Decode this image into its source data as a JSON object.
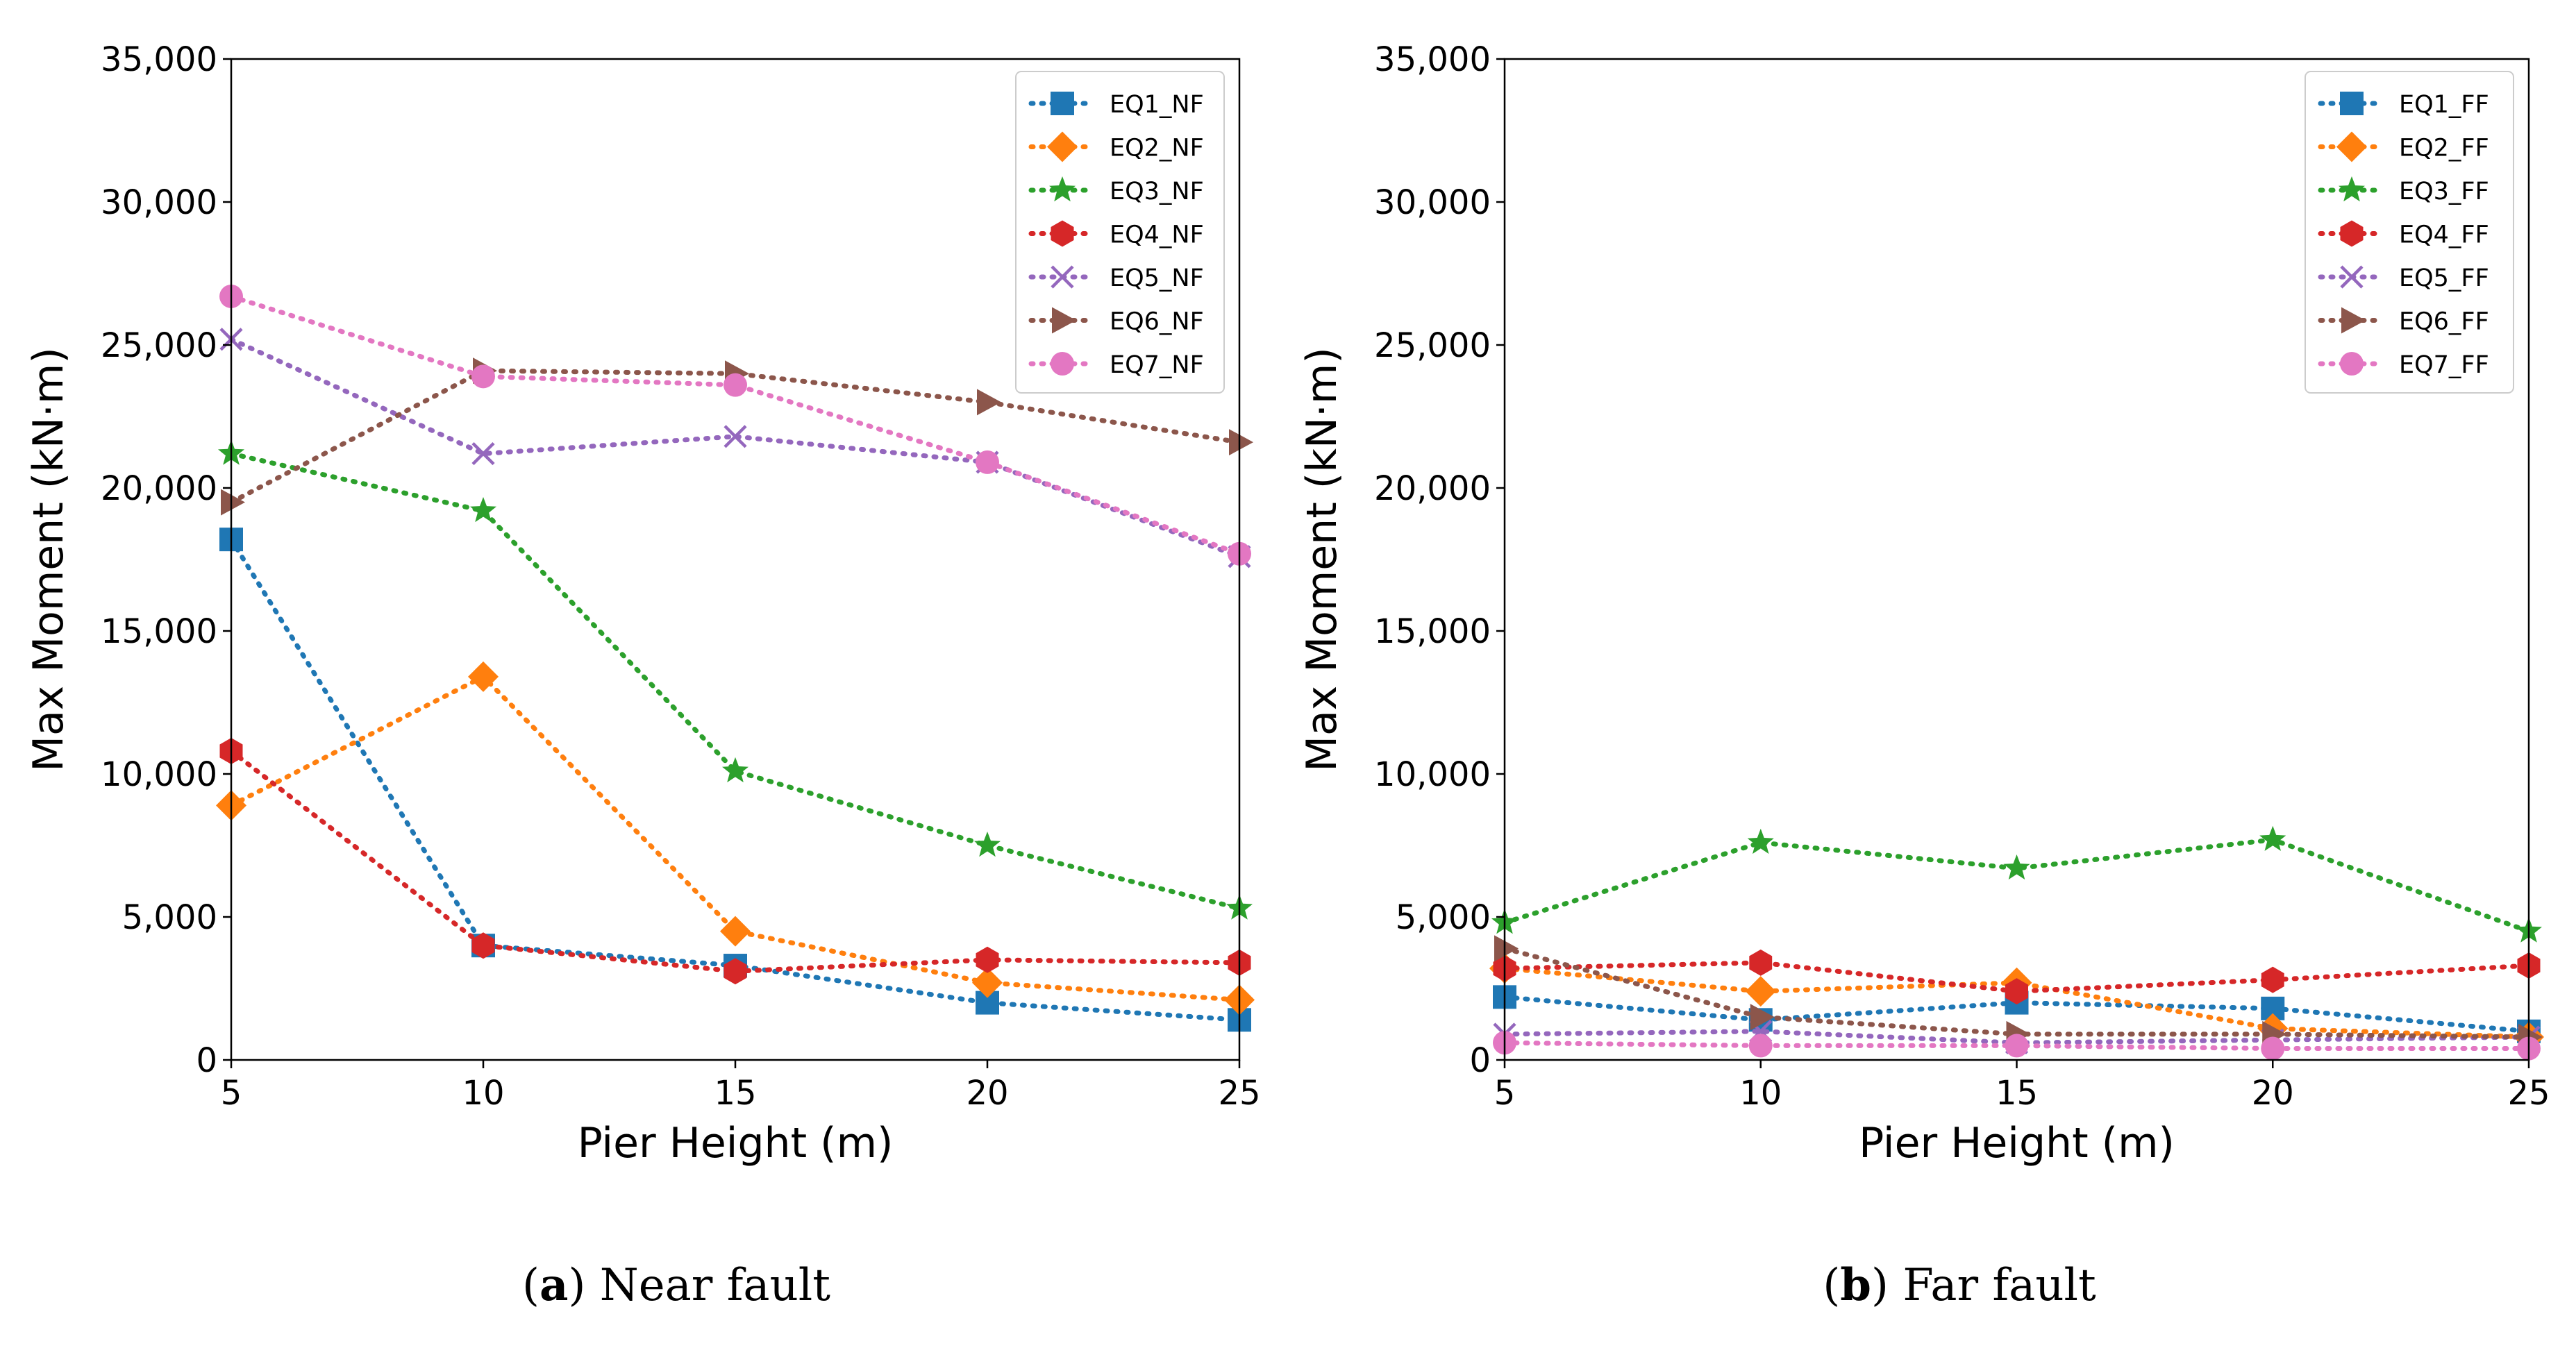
{
  "chart_data": [
    {
      "type": "line",
      "caption": {
        "letter": "a",
        "text": "Near fault"
      },
      "xlabel": "Pier Height (m)",
      "ylabel": "Max Moment (kN·m)",
      "xlim": [
        5,
        25
      ],
      "ylim": [
        0,
        35000
      ],
      "xticks": [
        "5",
        "10",
        "15",
        "20",
        "25"
      ],
      "yticks": [
        "0",
        "5,000",
        "10,000",
        "15,000",
        "20,000",
        "25,000",
        "30,000",
        "35,000"
      ],
      "grid": false,
      "legend_position": "top-right",
      "x": [
        5,
        10,
        15,
        20,
        25
      ],
      "series": [
        {
          "name": "EQ1_NF",
          "color": "#1f77b4",
          "marker": "square",
          "values": [
            18200,
            4000,
            3300,
            2000,
            1400
          ]
        },
        {
          "name": "EQ2_NF",
          "color": "#ff7f0e",
          "marker": "diamond",
          "values": [
            8900,
            13400,
            4500,
            2700,
            2100
          ]
        },
        {
          "name": "EQ3_NF",
          "color": "#2ca02c",
          "marker": "star",
          "values": [
            21200,
            19200,
            10100,
            7500,
            5300
          ]
        },
        {
          "name": "EQ4_NF",
          "color": "#d62728",
          "marker": "hexagon",
          "values": [
            10800,
            4000,
            3100,
            3500,
            3400
          ]
        },
        {
          "name": "EQ5_NF",
          "color": "#9467bd",
          "marker": "x",
          "values": [
            25200,
            21200,
            21800,
            20900,
            17600
          ]
        },
        {
          "name": "EQ6_NF",
          "color": "#8c564b",
          "marker": "triangle-right",
          "values": [
            19500,
            24100,
            24000,
            23000,
            21600
          ]
        },
        {
          "name": "EQ7_NF",
          "color": "#e377c2",
          "marker": "circle",
          "values": [
            26700,
            23900,
            23600,
            20900,
            17700
          ]
        }
      ]
    },
    {
      "type": "line",
      "caption": {
        "letter": "b",
        "text": "Far fault"
      },
      "xlabel": "Pier Height (m)",
      "ylabel": "Max Moment (kN·m)",
      "xlim": [
        5,
        25
      ],
      "ylim": [
        0,
        35000
      ],
      "xticks": [
        "5",
        "10",
        "15",
        "20",
        "25"
      ],
      "yticks": [
        "0",
        "5,000",
        "10,000",
        "15,000",
        "20,000",
        "25,000",
        "30,000",
        "35,000"
      ],
      "grid": false,
      "legend_position": "top-right",
      "x": [
        5,
        10,
        15,
        20,
        25
      ],
      "series": [
        {
          "name": "EQ1_FF",
          "color": "#1f77b4",
          "marker": "square",
          "values": [
            2200,
            1400,
            2000,
            1800,
            1000
          ]
        },
        {
          "name": "EQ2_FF",
          "color": "#ff7f0e",
          "marker": "diamond",
          "values": [
            3200,
            2400,
            2700,
            1100,
            800
          ]
        },
        {
          "name": "EQ3_FF",
          "color": "#2ca02c",
          "marker": "star",
          "values": [
            4800,
            7600,
            6700,
            7700,
            4500
          ]
        },
        {
          "name": "EQ4_FF",
          "color": "#d62728",
          "marker": "hexagon",
          "values": [
            3200,
            3400,
            2400,
            2800,
            3300
          ]
        },
        {
          "name": "EQ5_FF",
          "color": "#9467bd",
          "marker": "x",
          "values": [
            900,
            1000,
            600,
            700,
            800
          ]
        },
        {
          "name": "EQ6_FF",
          "color": "#8c564b",
          "marker": "triangle-right",
          "values": [
            3900,
            1500,
            900,
            900,
            800
          ]
        },
        {
          "name": "EQ7_FF",
          "color": "#e377c2",
          "marker": "circle",
          "values": [
            600,
            500,
            500,
            400,
            400
          ]
        }
      ]
    }
  ]
}
